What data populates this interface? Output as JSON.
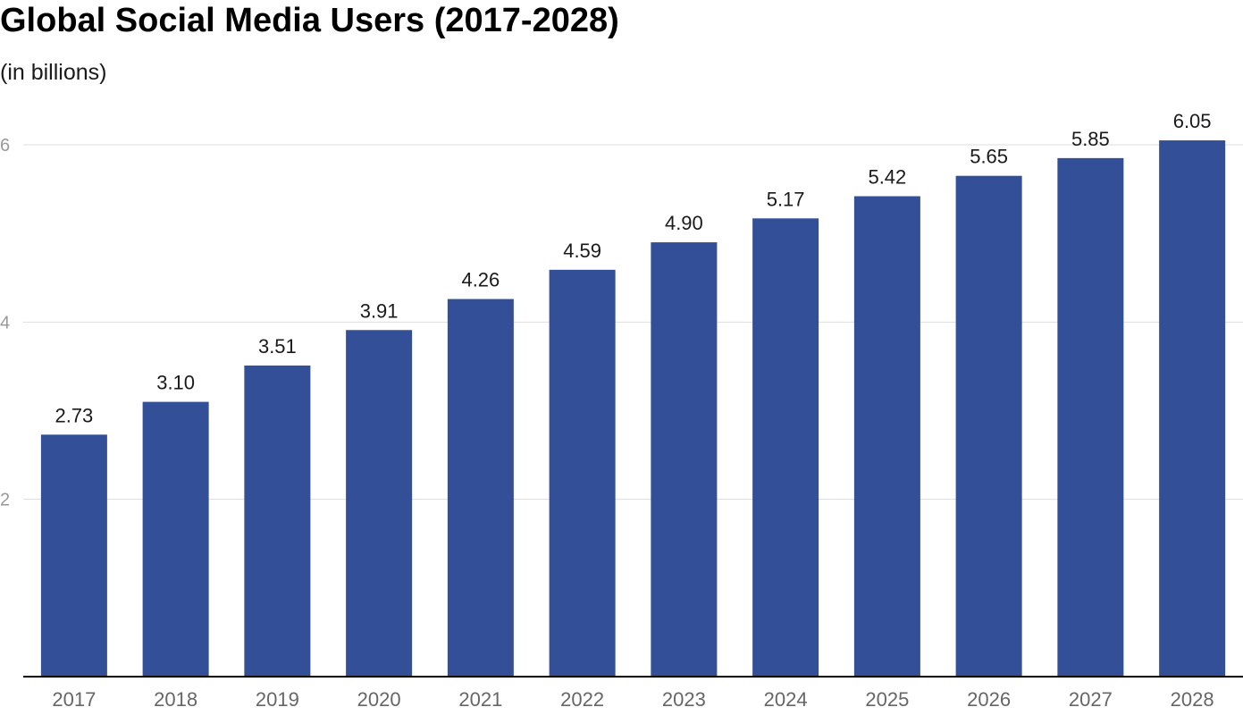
{
  "chart_data": {
    "type": "bar",
    "title": "Global Social Media Users (2017-2028)",
    "subtitle": "(in billions)",
    "xlabel": "",
    "ylabel": "",
    "categories": [
      "2017",
      "2018",
      "2019",
      "2020",
      "2021",
      "2022",
      "2023",
      "2024",
      "2025",
      "2026",
      "2027",
      "2028"
    ],
    "values": [
      2.73,
      3.1,
      3.51,
      3.91,
      4.26,
      4.59,
      4.9,
      5.17,
      5.42,
      5.65,
      5.85,
      6.05
    ],
    "value_labels": [
      "2.73",
      "3.10",
      "3.51",
      "3.91",
      "4.26",
      "4.59",
      "4.90",
      "5.17",
      "5.42",
      "5.65",
      "5.85",
      "6.05"
    ],
    "yticks": [
      2,
      4,
      6
    ],
    "ylim": [
      0,
      6.05
    ],
    "grid": true,
    "legend": "none",
    "colors": {
      "bar": "#334f98",
      "grid": "#dddddd",
      "axis": "#000000"
    }
  }
}
